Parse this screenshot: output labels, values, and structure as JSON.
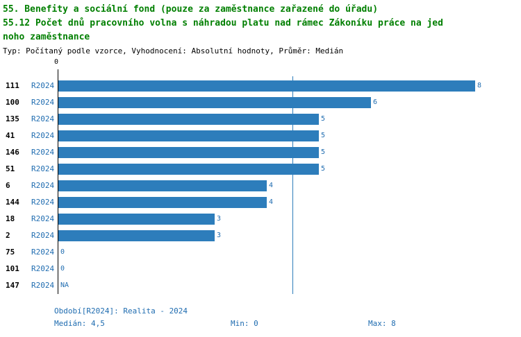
{
  "header": {
    "title_line1": "55. Benefity a sociální fond (pouze za zaměstnance zařazené do úřadu)",
    "title_line2": "55.12 Počet dnů pracovního volna s náhradou platu nad rámec Zákoníku práce na jed",
    "title_line3": "noho zaměstnance",
    "subtitle": "Typ: Počítaný podle vzorce, Vyhodnocení: Absolutní hodnoty, Průměr: Medián"
  },
  "chart_data": {
    "type": "bar",
    "orientation": "horizontal",
    "title": "55.12 Počet dnů pracovního volna s náhradou platu nad rámec Zákoníku práce na jednoho zaměstnance",
    "series_label": "R2024",
    "categories": [
      "111",
      "100",
      "135",
      "41",
      "146",
      "51",
      "6",
      "144",
      "18",
      "2",
      "75",
      "101",
      "147"
    ],
    "values": [
      8,
      6,
      5,
      5,
      5,
      5,
      4,
      4,
      3,
      3,
      0,
      0,
      null
    ],
    "value_labels": [
      "8",
      "6",
      "5",
      "5",
      "5",
      "5",
      "4",
      "4",
      "3",
      "3",
      "0",
      "0",
      "NA"
    ],
    "xlim": [
      0,
      8
    ],
    "x_axis_zero_label": "0",
    "median_value": 4.5,
    "grid": false,
    "legend_position": "none",
    "bar_color": "#2d7dbb",
    "median_line_color": "#2d7dbb"
  },
  "footer": {
    "period": "Období[R2024]: Realita - 2024",
    "median": "Medián: 4,5",
    "min": "Min: 0",
    "max": "Max: 8"
  },
  "colors": {
    "title_green": "#007f00",
    "series_blue": "#1f6cb0",
    "bar_blue": "#2d7dbb"
  }
}
